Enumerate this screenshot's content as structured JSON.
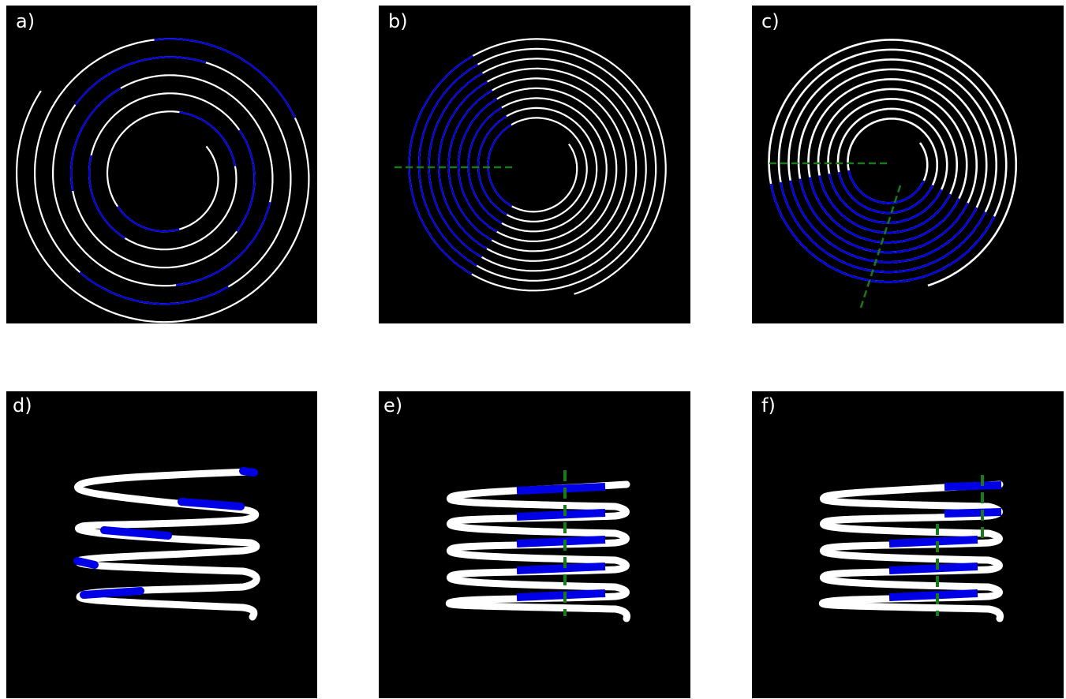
{
  "panels": [
    {
      "id": "a",
      "label": "a)"
    },
    {
      "id": "b",
      "label": "b)"
    },
    {
      "id": "c",
      "label": "c)"
    },
    {
      "id": "d",
      "label": "d)"
    },
    {
      "id": "e",
      "label": "e)"
    },
    {
      "id": "f",
      "label": "f)"
    }
  ],
  "colors": {
    "background": "#000000",
    "track": "#ffffff",
    "highlight": "#0000e6",
    "guide": "#1a7a1a"
  }
}
